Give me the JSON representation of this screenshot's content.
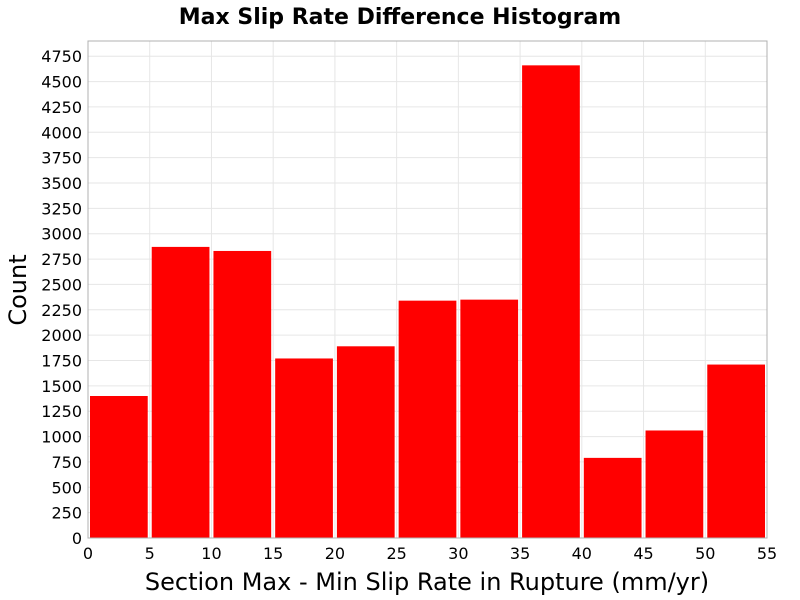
{
  "chart_data": {
    "type": "bar",
    "title": "Max Slip Rate Difference Histogram",
    "xlabel": "Section Max - Min Slip Rate in Rupture (mm/yr)",
    "ylabel": "Count",
    "bar_color": "#ff0000",
    "grid": true,
    "xlim": [
      0,
      55
    ],
    "ylim": [
      0,
      4900
    ],
    "x_ticks": [
      0,
      5,
      10,
      15,
      20,
      25,
      30,
      35,
      40,
      45,
      50,
      55
    ],
    "y_ticks": [
      0,
      250,
      500,
      750,
      1000,
      1250,
      1500,
      1750,
      2000,
      2250,
      2500,
      2750,
      3000,
      3250,
      3500,
      3750,
      4000,
      4250,
      4500,
      4750
    ],
    "bins": [
      {
        "start": 0,
        "end": 5,
        "value": 1400
      },
      {
        "start": 5,
        "end": 10,
        "value": 2870
      },
      {
        "start": 10,
        "end": 15,
        "value": 2830
      },
      {
        "start": 15,
        "end": 20,
        "value": 1770
      },
      {
        "start": 20,
        "end": 25,
        "value": 1890
      },
      {
        "start": 25,
        "end": 30,
        "value": 2340
      },
      {
        "start": 30,
        "end": 35,
        "value": 2350
      },
      {
        "start": 35,
        "end": 40,
        "value": 4660
      },
      {
        "start": 40,
        "end": 45,
        "value": 790
      },
      {
        "start": 45,
        "end": 50,
        "value": 1060
      },
      {
        "start": 50,
        "end": 55,
        "value": 1710
      }
    ]
  }
}
